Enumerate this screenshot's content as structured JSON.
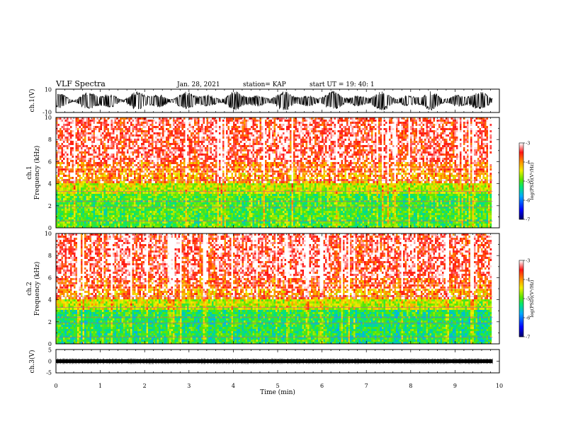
{
  "header": {
    "title": "VLF Spectra",
    "date": "Jan. 28, 2021",
    "station": "station= KAP",
    "start": "start  UT  =   19: 40: 1"
  },
  "chart_data": [
    {
      "type": "line",
      "id": "ch1-waveform",
      "ylabel": "ch.1(V)",
      "yticks": [
        "10",
        "-10"
      ],
      "ylim": [
        -10,
        10
      ],
      "xlim": [
        0,
        10
      ],
      "color": "#000000"
    },
    {
      "type": "heatmap",
      "id": "ch1-spectrogram",
      "ylabel": "ch.1\nFrequency  (kHz)",
      "yticks": [
        "0",
        "2",
        "4",
        "6",
        "8",
        "10"
      ],
      "ylim": [
        0,
        10
      ],
      "xlim": [
        0,
        9.85
      ],
      "colorbar": {
        "label": "log(PSD)(V²/Hz)",
        "ticks": [
          "-3",
          "-4",
          "-5",
          "-6",
          "-7"
        ],
        "range": [
          -7,
          -3
        ]
      },
      "band_levels_by_khz": [
        {
          "f": 0.5,
          "level": -5.0
        },
        {
          "f": 1.5,
          "level": -5.0
        },
        {
          "f": 2.5,
          "level": -5.0
        },
        {
          "f": 3.5,
          "level": -4.6
        },
        {
          "f": 4.5,
          "level": -4.0
        },
        {
          "f": 5.5,
          "level": -3.8
        },
        {
          "f": 8.0,
          "level": -3.4
        }
      ]
    },
    {
      "type": "heatmap",
      "id": "ch2-spectrogram",
      "ylabel": "ch.2\nFrequency  (kHz)",
      "yticks": [
        "0",
        "2",
        "4",
        "6",
        "8",
        "10"
      ],
      "ylim": [
        0,
        10
      ],
      "xlim": [
        0,
        9.85
      ],
      "colorbar": {
        "label": "log(PSD)(V²/Hz)",
        "ticks": [
          "-3",
          "-4",
          "-5",
          "-6",
          "-7"
        ],
        "range": [
          -7,
          -3
        ]
      },
      "band_levels_by_khz": [
        {
          "f": 0.5,
          "level": -5.2
        },
        {
          "f": 1.5,
          "level": -5.2
        },
        {
          "f": 2.5,
          "level": -5.2
        },
        {
          "f": 3.5,
          "level": -4.6
        },
        {
          "f": 4.5,
          "level": -4.0
        },
        {
          "f": 5.5,
          "level": -3.7
        },
        {
          "f": 8.0,
          "level": -3.4
        }
      ]
    },
    {
      "type": "line",
      "id": "ch3-waveform",
      "ylabel": "ch.3(V)",
      "yticks": [
        "5",
        "0",
        "-5"
      ],
      "ylim": [
        -5,
        5
      ],
      "xlim": [
        0,
        10
      ],
      "color": "#000000"
    }
  ],
  "xaxis": {
    "label": "Time  (min)",
    "ticks": [
      "0",
      "1",
      "2",
      "3",
      "4",
      "5",
      "6",
      "7",
      "8",
      "9",
      "10"
    ],
    "range": [
      0,
      10
    ]
  }
}
